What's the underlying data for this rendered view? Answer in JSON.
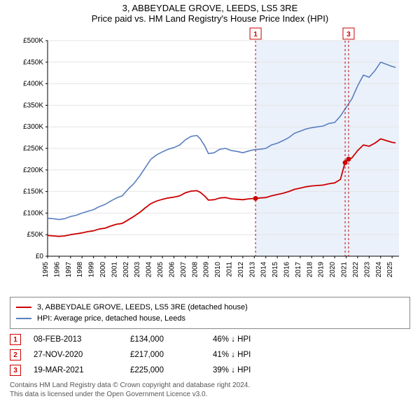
{
  "title_line1": "3, ABBEYDALE GROVE, LEEDS, LS5 3RE",
  "title_line2": "Price paid vs. HM Land Registry's House Price Index (HPI)",
  "chart": {
    "type": "line",
    "plot_background": "#ffffff",
    "forecast_band_color": "#eaf1fb",
    "grid_color": "#e4e4e4",
    "axis_color": "#000000",
    "x_years": [
      1995,
      1996,
      1997,
      1998,
      1999,
      2000,
      2001,
      2002,
      2003,
      2004,
      2005,
      2006,
      2007,
      2008,
      2009,
      2010,
      2011,
      2012,
      2013,
      2014,
      2015,
      2016,
      2017,
      2018,
      2019,
      2020,
      2021,
      2022,
      2023,
      2024,
      2025
    ],
    "x_min": 1995,
    "x_max": 2025.6,
    "y_min": 0,
    "y_max": 500000,
    "y_ticks": [
      0,
      50000,
      100000,
      150000,
      200000,
      250000,
      300000,
      350000,
      400000,
      450000,
      500000
    ],
    "y_tick_labels": [
      "£0",
      "£50K",
      "£100K",
      "£150K",
      "£200K",
      "£250K",
      "£300K",
      "£350K",
      "£400K",
      "£450K",
      "£500K"
    ],
    "forecast_start_year": 2013.1,
    "series": [
      {
        "name": "hpi",
        "color": "#5a7fbf",
        "width": 1.6,
        "points": [
          [
            1995,
            88000
          ],
          [
            1995.5,
            87000
          ],
          [
            1996,
            85000
          ],
          [
            1996.5,
            87000
          ],
          [
            1997,
            92000
          ],
          [
            1997.5,
            95000
          ],
          [
            1998,
            100000
          ],
          [
            1998.5,
            104000
          ],
          [
            1999,
            108000
          ],
          [
            1999.5,
            115000
          ],
          [
            2000,
            120000
          ],
          [
            2000.5,
            128000
          ],
          [
            2001,
            135000
          ],
          [
            2001.5,
            140000
          ],
          [
            2002,
            155000
          ],
          [
            2002.5,
            168000
          ],
          [
            2003,
            185000
          ],
          [
            2003.5,
            205000
          ],
          [
            2004,
            225000
          ],
          [
            2004.5,
            235000
          ],
          [
            2005,
            242000
          ],
          [
            2005.5,
            248000
          ],
          [
            2006,
            252000
          ],
          [
            2006.5,
            258000
          ],
          [
            2007,
            270000
          ],
          [
            2007.5,
            278000
          ],
          [
            2008,
            280000
          ],
          [
            2008.3,
            272000
          ],
          [
            2008.7,
            255000
          ],
          [
            2009,
            238000
          ],
          [
            2009.5,
            240000
          ],
          [
            2010,
            248000
          ],
          [
            2010.5,
            250000
          ],
          [
            2011,
            245000
          ],
          [
            2011.5,
            243000
          ],
          [
            2012,
            240000
          ],
          [
            2012.5,
            244000
          ],
          [
            2013,
            247000
          ],
          [
            2013.5,
            248000
          ],
          [
            2014,
            250000
          ],
          [
            2014.5,
            258000
          ],
          [
            2015,
            262000
          ],
          [
            2015.5,
            268000
          ],
          [
            2016,
            275000
          ],
          [
            2016.5,
            285000
          ],
          [
            2017,
            290000
          ],
          [
            2017.5,
            295000
          ],
          [
            2018,
            298000
          ],
          [
            2018.5,
            300000
          ],
          [
            2019,
            302000
          ],
          [
            2019.5,
            308000
          ],
          [
            2020,
            310000
          ],
          [
            2020.5,
            325000
          ],
          [
            2021,
            345000
          ],
          [
            2021.5,
            365000
          ],
          [
            2022,
            395000
          ],
          [
            2022.5,
            420000
          ],
          [
            2023,
            415000
          ],
          [
            2023.5,
            430000
          ],
          [
            2024,
            450000
          ],
          [
            2024.5,
            445000
          ],
          [
            2025,
            440000
          ],
          [
            2025.3,
            438000
          ]
        ]
      },
      {
        "name": "property",
        "color": "#cc0000",
        "width": 1.8,
        "points": [
          [
            1995,
            48000
          ],
          [
            1995.5,
            47000
          ],
          [
            1996,
            46000
          ],
          [
            1996.5,
            47000
          ],
          [
            1997,
            50000
          ],
          [
            1997.5,
            52000
          ],
          [
            1998,
            54000
          ],
          [
            1998.5,
            57000
          ],
          [
            1999,
            59000
          ],
          [
            1999.5,
            63000
          ],
          [
            2000,
            65000
          ],
          [
            2000.5,
            70000
          ],
          [
            2001,
            74000
          ],
          [
            2001.5,
            76000
          ],
          [
            2002,
            84000
          ],
          [
            2002.5,
            92000
          ],
          [
            2003,
            101000
          ],
          [
            2003.5,
            112000
          ],
          [
            2004,
            122000
          ],
          [
            2004.5,
            128000
          ],
          [
            2005,
            132000
          ],
          [
            2005.5,
            135000
          ],
          [
            2006,
            137000
          ],
          [
            2006.5,
            140000
          ],
          [
            2007,
            147000
          ],
          [
            2007.5,
            151000
          ],
          [
            2008,
            152000
          ],
          [
            2008.3,
            148000
          ],
          [
            2008.7,
            139000
          ],
          [
            2009,
            130000
          ],
          [
            2009.5,
            131000
          ],
          [
            2010,
            135000
          ],
          [
            2010.5,
            136000
          ],
          [
            2011,
            133000
          ],
          [
            2011.5,
            132000
          ],
          [
            2012,
            131000
          ],
          [
            2012.5,
            133000
          ],
          [
            2013,
            134000
          ],
          [
            2013.5,
            135000
          ],
          [
            2014,
            136000
          ],
          [
            2014.5,
            140000
          ],
          [
            2015,
            143000
          ],
          [
            2015.5,
            146000
          ],
          [
            2016,
            150000
          ],
          [
            2016.5,
            155000
          ],
          [
            2017,
            158000
          ],
          [
            2017.5,
            161000
          ],
          [
            2018,
            163000
          ],
          [
            2018.5,
            164000
          ],
          [
            2019,
            165000
          ],
          [
            2019.5,
            168000
          ],
          [
            2020,
            170000
          ],
          [
            2020.5,
            178000
          ],
          [
            2020.9,
            217000
          ],
          [
            2021,
            222000
          ],
          [
            2021.21,
            225000
          ],
          [
            2021.5,
            228000
          ],
          [
            2022,
            245000
          ],
          [
            2022.5,
            258000
          ],
          [
            2023,
            255000
          ],
          [
            2023.5,
            262000
          ],
          [
            2024,
            272000
          ],
          [
            2024.5,
            268000
          ],
          [
            2025,
            264000
          ],
          [
            2025.3,
            263000
          ]
        ]
      }
    ],
    "markers": [
      {
        "n": 1,
        "year": 2013.11,
        "price": 134000,
        "line_color": "#cc0000",
        "dot_color": "#cc0000",
        "label_bg": "#ffffff"
      },
      {
        "n": 2,
        "year": 2020.91,
        "price": 217000,
        "line_color": "#cc0000",
        "dot_color": "#cc0000",
        "label_bg": "#ffffff",
        "hide_label": true
      },
      {
        "n": 3,
        "year": 2021.21,
        "price": 225000,
        "line_color": "#cc0000",
        "dot_color": "#cc0000",
        "label_bg": "#ffffff"
      }
    ]
  },
  "legend": {
    "entries": [
      {
        "color": "#cc0000",
        "label": "3, ABBEYDALE GROVE, LEEDS, LS5 3RE (detached house)"
      },
      {
        "color": "#5a7fbf",
        "label": "HPI: Average price, detached house, Leeds"
      }
    ]
  },
  "transactions": [
    {
      "n": "1",
      "date": "08-FEB-2013",
      "price": "£134,000",
      "diff": "46% ↓ HPI"
    },
    {
      "n": "2",
      "date": "27-NOV-2020",
      "price": "£217,000",
      "diff": "41% ↓ HPI"
    },
    {
      "n": "3",
      "date": "19-MAR-2021",
      "price": "£225,000",
      "diff": "39% ↓ HPI"
    }
  ],
  "footer_line1": "Contains HM Land Registry data © Crown copyright and database right 2024.",
  "footer_line2": "This data is licensed under the Open Government Licence v3.0."
}
